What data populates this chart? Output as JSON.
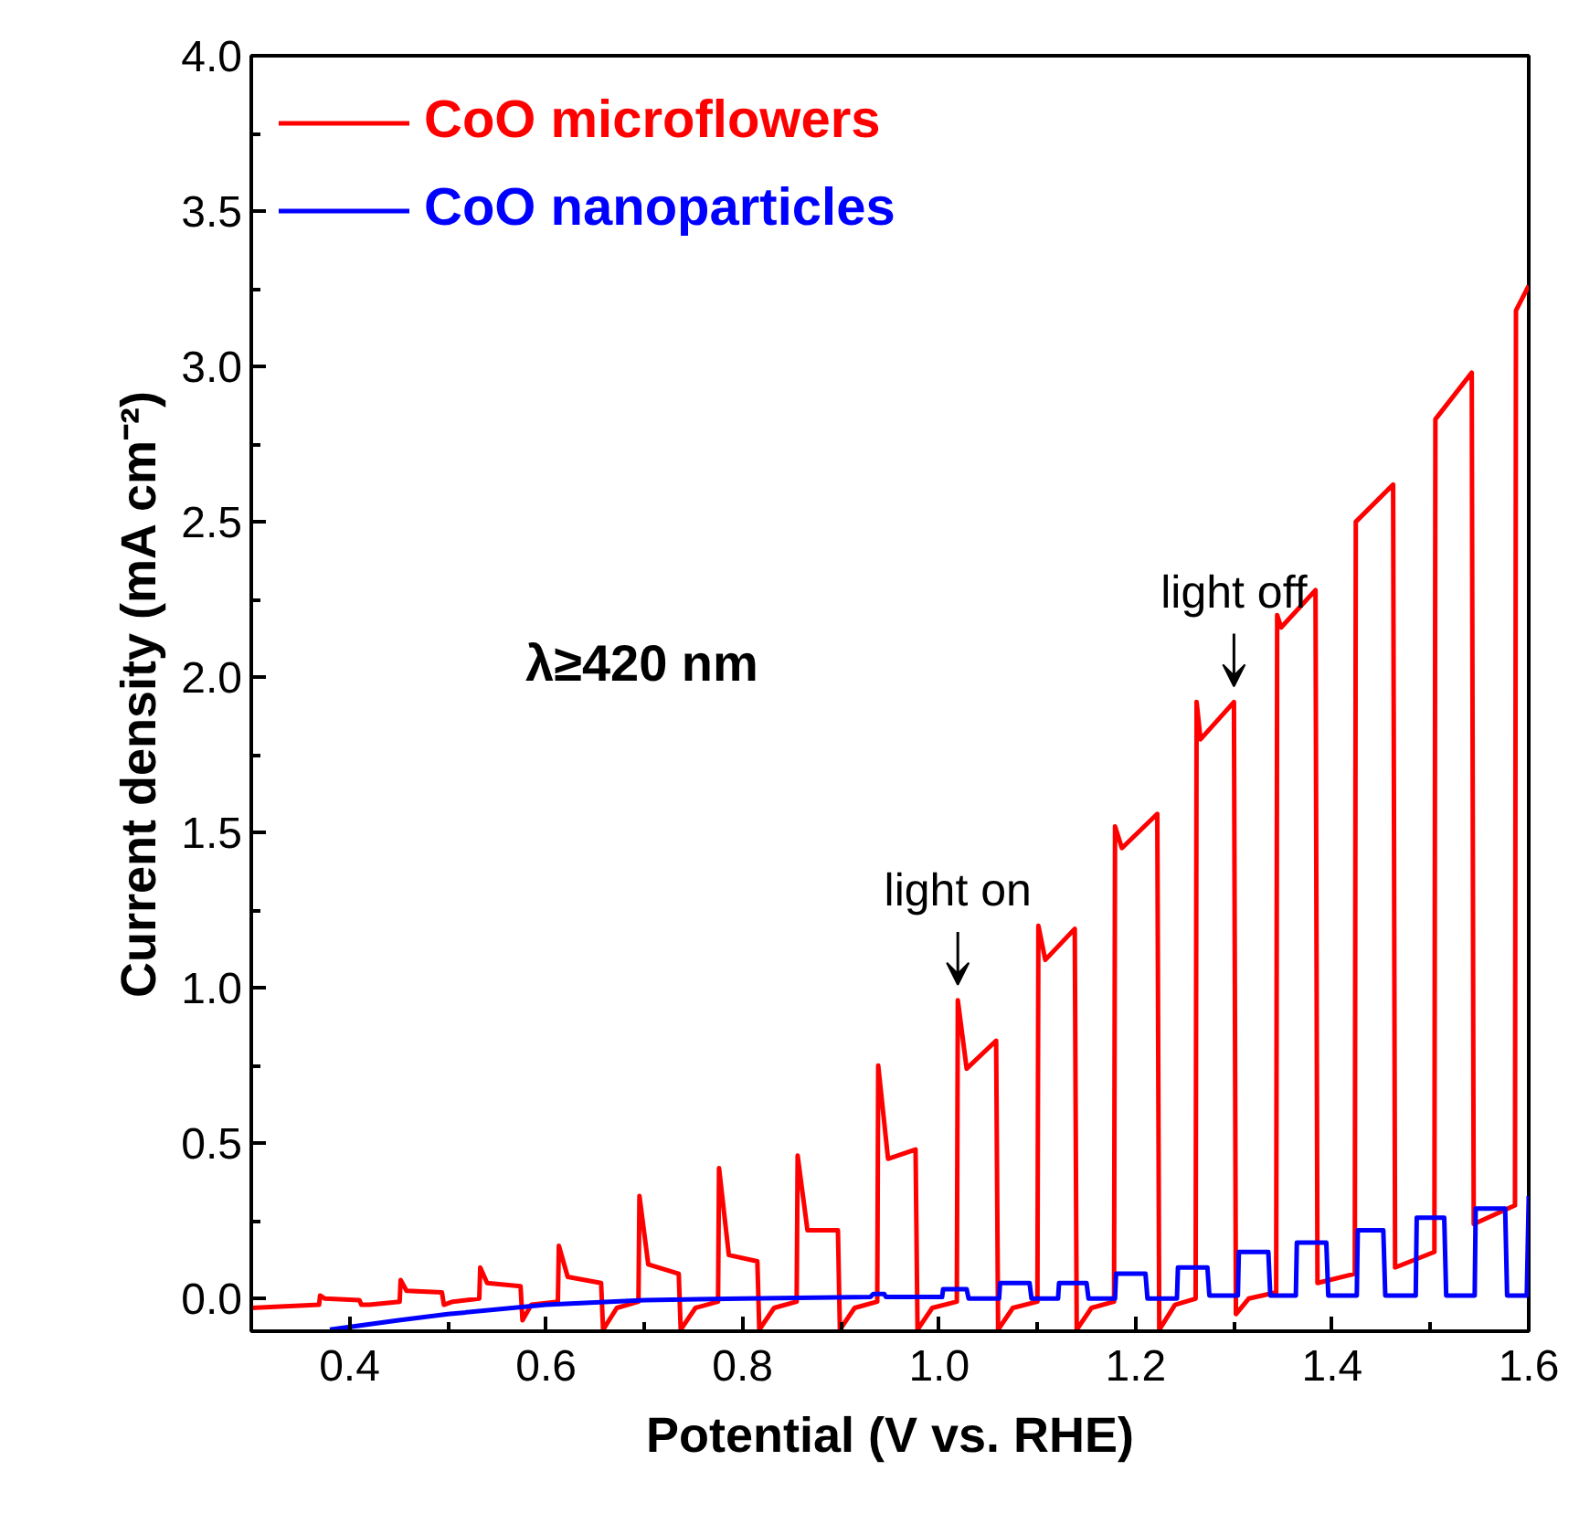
{
  "chart_data": {
    "type": "line",
    "xlabel": "Potential (V vs. RHE)",
    "ylabel": "Current density (mA cm⁻²)",
    "xlim": [
      0.3,
      1.6
    ],
    "ylim": [
      -0.105,
      4.0
    ],
    "xticks": [
      0.4,
      0.6,
      0.8,
      {
        "value": 1,
        "label": "1.0"
      },
      1.2,
      1.4,
      1.6,
      {
        "value": 0.3,
        "label": null
      },
      {
        "value": 0.5,
        "label": null
      },
      {
        "value": 0.7,
        "label": null
      },
      {
        "value": 0.9,
        "label": null
      },
      {
        "value": 1.1,
        "label": null
      },
      {
        "value": 1.3,
        "label": null
      },
      {
        "value": 1.5,
        "label": null
      }
    ],
    "yticks": [
      {
        "value": 0,
        "label": "0.0"
      },
      {
        "value": 0.5,
        "label": "0.5"
      },
      {
        "value": 1,
        "label": "1.0"
      },
      {
        "value": 1.5,
        "label": "1.5"
      },
      {
        "value": 2,
        "label": "2.0"
      },
      {
        "value": 2.5,
        "label": "2.5"
      },
      {
        "value": 3,
        "label": "3.0"
      },
      {
        "value": 3.5,
        "label": "3.5"
      },
      {
        "value": 4,
        "label": "4.0"
      },
      {
        "value": 0.25,
        "label": null
      },
      {
        "value": 0.75,
        "label": null
      },
      {
        "value": 1.25,
        "label": null
      },
      {
        "value": 1.75,
        "label": null
      },
      {
        "value": 2.25,
        "label": null
      },
      {
        "value": 2.75,
        "label": null
      },
      {
        "value": 3.25,
        "label": null
      },
      {
        "value": 3.75,
        "label": null
      }
    ],
    "grid": false,
    "legend": "top left",
    "marker": "none",
    "line_style": "solid",
    "series": [
      {
        "name": "CoO microflowers",
        "color": "#ff0000",
        "x": [
          0.3,
          0.369,
          0.37,
          0.375,
          0.41,
          0.412,
          0.42,
          0.451,
          0.452,
          0.458,
          0.494,
          0.496,
          0.505,
          0.532,
          0.533,
          0.54,
          0.574,
          0.576,
          0.585,
          0.612,
          0.613,
          0.622,
          0.656,
          0.658,
          0.672,
          0.694,
          0.695,
          0.704,
          0.735,
          0.737,
          0.752,
          0.775,
          0.776,
          0.786,
          0.815,
          0.817,
          0.832,
          0.855,
          0.856,
          0.866,
          0.897,
          0.899,
          0.914,
          0.937,
          0.938,
          0.948,
          0.976,
          0.978,
          0.993,
          1.018,
          1.019,
          1.028,
          1.058,
          1.06,
          1.075,
          1.1,
          1.101,
          1.108,
          1.138,
          1.14,
          1.155,
          1.178,
          1.179,
          1.186,
          1.222,
          1.224,
          1.24,
          1.261,
          1.262,
          1.266,
          1.3,
          1.302,
          1.315,
          1.343,
          1.344,
          1.348,
          1.383,
          1.385,
          1.423,
          1.424,
          1.462,
          1.464,
          1.504,
          1.505,
          1.542,
          1.544,
          1.586,
          1.587,
          1.6
        ],
        "values": [
          -0.03,
          -0.02,
          0.01,
          0.0,
          -0.005,
          -0.02,
          -0.02,
          -0.01,
          0.06,
          0.025,
          0.02,
          -0.02,
          -0.01,
          0.0,
          0.1,
          0.05,
          0.04,
          -0.07,
          -0.02,
          -0.01,
          0.17,
          0.07,
          0.05,
          -0.1,
          -0.03,
          -0.01,
          0.33,
          0.11,
          0.08,
          -0.1,
          -0.03,
          -0.01,
          0.42,
          0.14,
          0.12,
          -0.1,
          -0.03,
          -0.01,
          0.46,
          0.22,
          0.22,
          -0.1,
          -0.03,
          -0.01,
          0.75,
          0.45,
          0.48,
          -0.1,
          -0.03,
          -0.01,
          0.96,
          0.74,
          0.83,
          -0.1,
          -0.03,
          -0.01,
          1.2,
          1.09,
          1.19,
          -0.1,
          -0.03,
          -0.01,
          1.52,
          1.45,
          1.56,
          -0.1,
          -0.02,
          0.0,
          1.92,
          1.8,
          1.92,
          -0.05,
          0.0,
          0.02,
          2.2,
          2.16,
          2.28,
          0.05,
          0.08,
          2.5,
          2.62,
          0.1,
          0.15,
          2.83,
          2.98,
          0.24,
          0.3,
          3.18,
          3.26
        ]
      },
      {
        "name": "CoO nanoparticles",
        "color": "#0000ff",
        "x": [
          0.38,
          0.45,
          0.5,
          0.6,
          0.7,
          0.8,
          0.93,
          0.933,
          0.944,
          0.946,
          1.003,
          1.004,
          1.028,
          1.03,
          1.061,
          1.062,
          1.092,
          1.094,
          1.121,
          1.122,
          1.15,
          1.152,
          1.179,
          1.18,
          1.21,
          1.212,
          1.242,
          1.243,
          1.273,
          1.275,
          1.304,
          1.305,
          1.335,
          1.337,
          1.363,
          1.364,
          1.394,
          1.396,
          1.425,
          1.426,
          1.452,
          1.454,
          1.485,
          1.486,
          1.514,
          1.516,
          1.545,
          1.546,
          1.576,
          1.578,
          1.598,
          1.6
        ],
        "values": [
          -0.1,
          -0.07,
          -0.05,
          -0.02,
          -0.005,
          0.0,
          0.005,
          0.015,
          0.015,
          0.005,
          0.005,
          0.03,
          0.03,
          0.0,
          0.0,
          0.05,
          0.05,
          0.0,
          0.0,
          0.05,
          0.05,
          0.0,
          0.0,
          0.08,
          0.08,
          0.0,
          0.0,
          0.1,
          0.1,
          0.01,
          0.01,
          0.15,
          0.15,
          0.01,
          0.01,
          0.18,
          0.18,
          0.01,
          0.01,
          0.22,
          0.22,
          0.01,
          0.01,
          0.26,
          0.26,
          0.01,
          0.01,
          0.29,
          0.29,
          0.01,
          0.01,
          0.33
        ]
      }
    ],
    "annotations": [
      "λ≥420 nm",
      {
        "text": "light on",
        "x": 1.019,
        "y": 0.96
      },
      {
        "text": "light off",
        "x": 1.3,
        "y": 1.92
      }
    ]
  }
}
